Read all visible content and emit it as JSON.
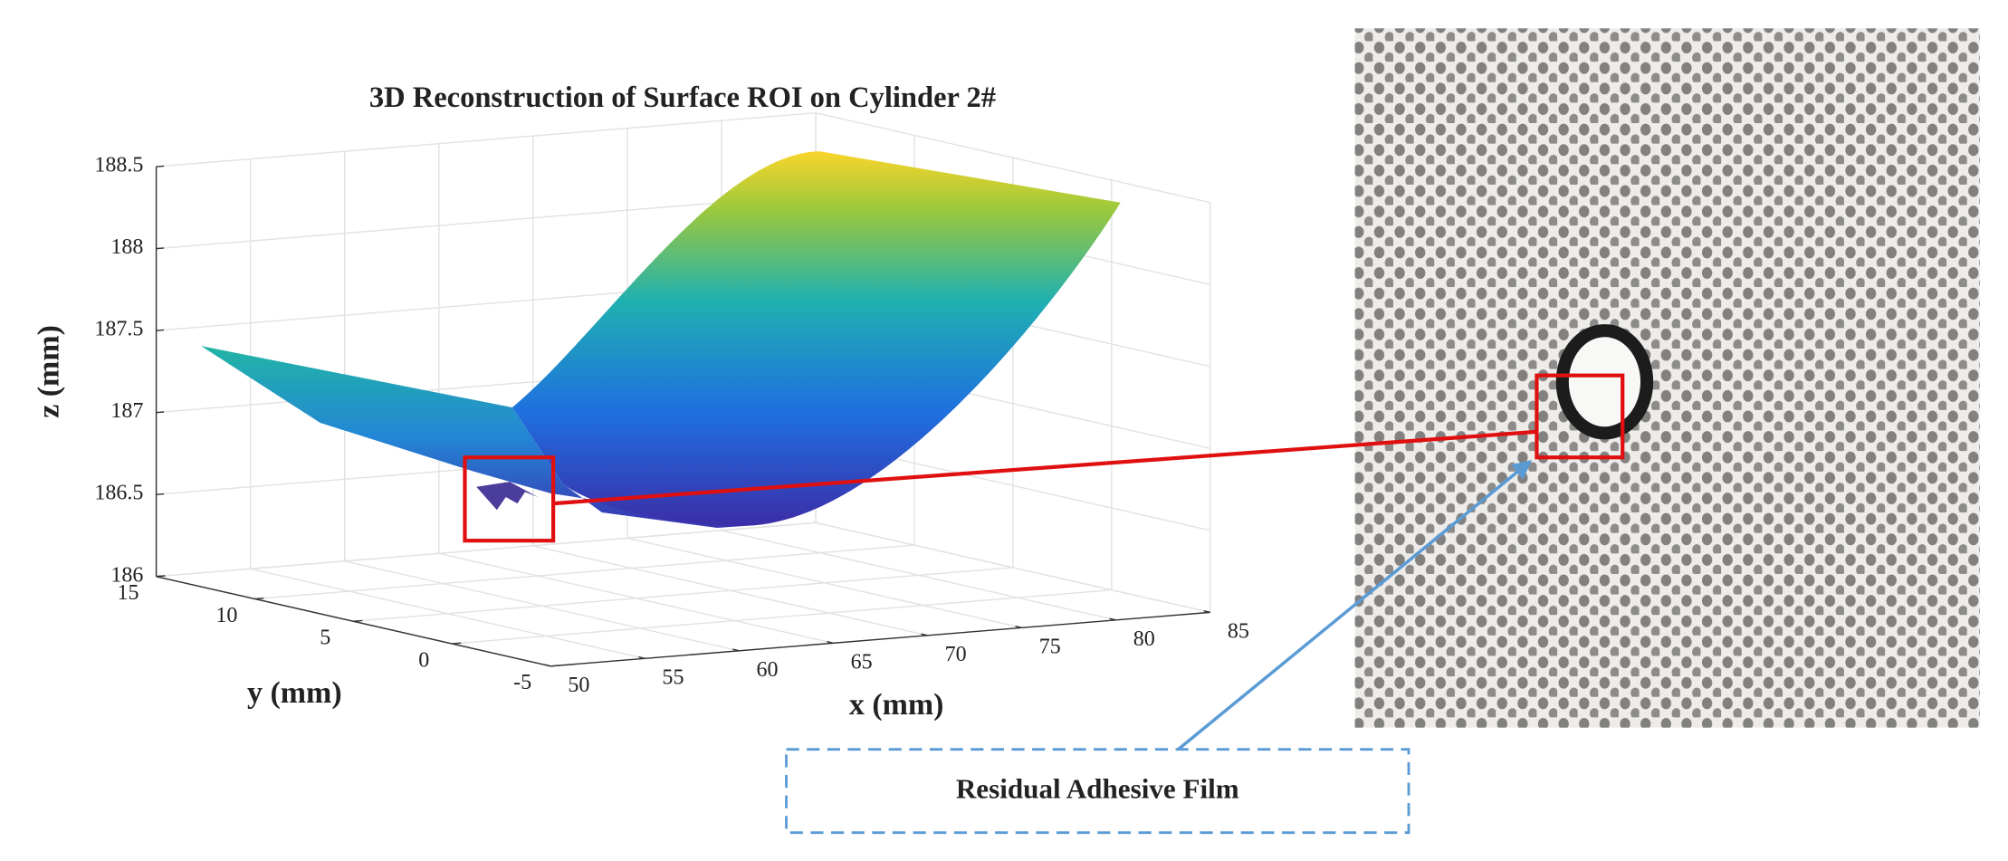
{
  "chart_data": {
    "type": "surface",
    "title": "3D Reconstruction of Surface ROI on Cylinder 2#",
    "x_label": "x (mm)",
    "y_label": "y (mm)",
    "z_label": "z (mm)",
    "xlim": [
      50,
      85
    ],
    "xticks": [
      50,
      55,
      60,
      65,
      70,
      75,
      80,
      85
    ],
    "ylim": [
      -5,
      15
    ],
    "yticks": [
      -5,
      0,
      5,
      10,
      15
    ],
    "zlim": [
      186,
      188.5
    ],
    "zticks": [
      186,
      186.5,
      187,
      187.5,
      188,
      188.5
    ],
    "grid": true,
    "annotation": "Residual Adhesive Film"
  }
}
